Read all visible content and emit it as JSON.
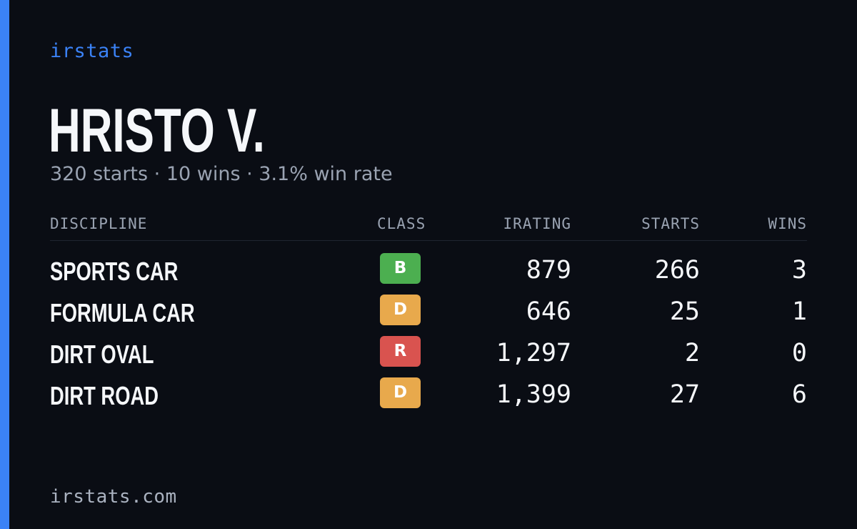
{
  "brand": "irstats",
  "driver": {
    "name": "HRISTO V.",
    "summary": "320 starts · 10 wins · 3.1% win rate"
  },
  "table": {
    "headers": {
      "discipline": "DISCIPLINE",
      "class": "CLASS",
      "irating": "IRATING",
      "starts": "STARTS",
      "wins": "WINS"
    },
    "rows": [
      {
        "discipline": "SPORTS CAR",
        "class": "B",
        "class_color": "#4caf50",
        "irating": "879",
        "starts": "266",
        "wins": "3"
      },
      {
        "discipline": "FORMULA CAR",
        "class": "D",
        "class_color": "#e8a94c",
        "irating": "646",
        "starts": "25",
        "wins": "1"
      },
      {
        "discipline": "DIRT OVAL",
        "class": "R",
        "class_color": "#d9534f",
        "irating": "1,297",
        "starts": "2",
        "wins": "0"
      },
      {
        "discipline": "DIRT ROAD",
        "class": "D",
        "class_color": "#e8a94c",
        "irating": "1,399",
        "starts": "27",
        "wins": "6"
      }
    ]
  },
  "footer": "irstats.com",
  "colors": {
    "accent": "#3b82f6",
    "background": "#0a0d14",
    "text": "#f5f7fa",
    "muted": "#9aa3b2"
  }
}
